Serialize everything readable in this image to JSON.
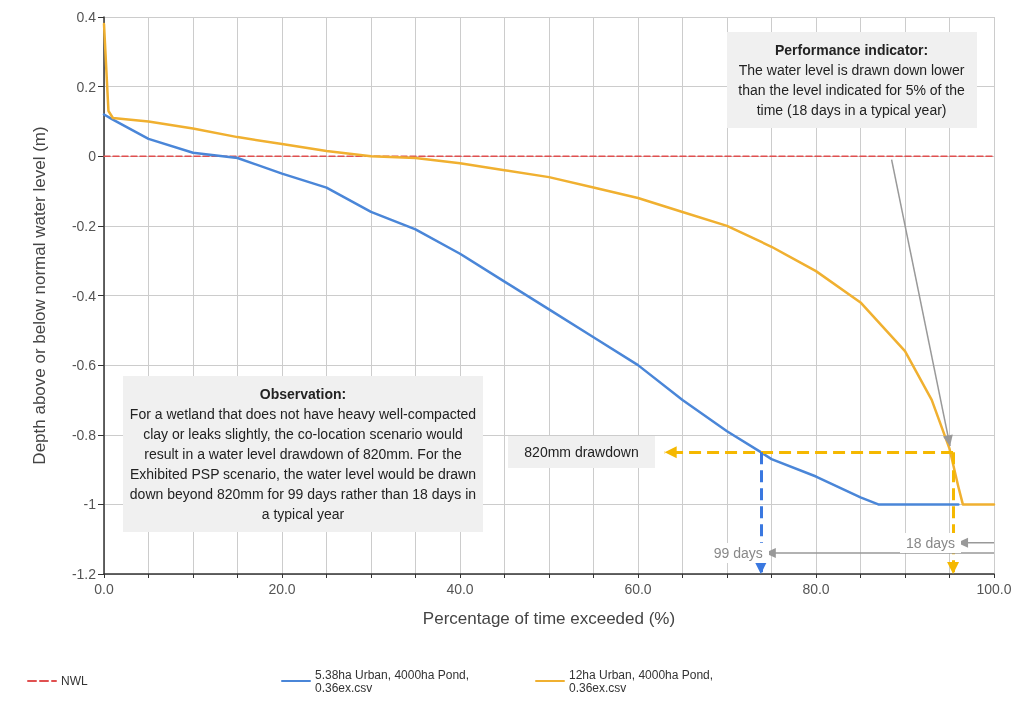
{
  "chart_data": {
    "type": "line",
    "xlabel": "Percentage of time exceeded (%)",
    "ylabel": "Depth above or below normal water level (m)",
    "xlim": [
      0,
      100
    ],
    "ylim": [
      -1.2,
      0.4
    ],
    "xticks": [
      {
        "value": 0,
        "label": "0.0"
      },
      {
        "value": 5,
        "label": null
      },
      {
        "value": 10,
        "label": null
      },
      {
        "value": 15,
        "label": null
      },
      {
        "value": 20,
        "label": "20.0"
      },
      {
        "value": 25,
        "label": null
      },
      {
        "value": 30,
        "label": null
      },
      {
        "value": 35,
        "label": null
      },
      {
        "value": 40,
        "label": "40.0"
      },
      {
        "value": 45,
        "label": null
      },
      {
        "value": 50,
        "label": null
      },
      {
        "value": 55,
        "label": null
      },
      {
        "value": 60,
        "label": "60.0"
      },
      {
        "value": 65,
        "label": null
      },
      {
        "value": 70,
        "label": null
      },
      {
        "value": 75,
        "label": null
      },
      {
        "value": 80,
        "label": "80.0"
      },
      {
        "value": 85,
        "label": null
      },
      {
        "value": 90,
        "label": null
      },
      {
        "value": 95,
        "label": null
      },
      {
        "value": 100,
        "label": "100.0"
      }
    ],
    "yticks": [
      -1.2,
      -1,
      -0.8,
      -0.6,
      -0.4,
      -0.2,
      0,
      0.2,
      0.4
    ],
    "grid": true,
    "legend": "bottom left",
    "marker": "none",
    "series": [
      {
        "name": "NWL",
        "color": "#e05050",
        "line_style": "dashed",
        "x": [
          0,
          100
        ],
        "values": [
          0,
          0
        ]
      },
      {
        "name": "5.38ha Urban, 4000ha Pond, 0.36ex.csv",
        "color": "#4a86d8",
        "line_style": "solid",
        "x": [
          0,
          1,
          5,
          10,
          15,
          20,
          25,
          30,
          35,
          40,
          45,
          50,
          55,
          60,
          65,
          70,
          73.8,
          75,
          80,
          85,
          87,
          96
        ],
        "values": [
          0.12,
          0.105,
          0.05,
          0.01,
          -0.005,
          -0.05,
          -0.09,
          -0.16,
          -0.21,
          -0.28,
          -0.36,
          -0.44,
          -0.52,
          -0.6,
          -0.7,
          -0.79,
          -0.85,
          -0.87,
          -0.92,
          -0.98,
          -1.0,
          -1.0
        ]
      },
      {
        "name": "12ha Urban, 4000ha Pond, 0.36ex.csv",
        "color": "#f0b030",
        "line_style": "solid",
        "x": [
          0,
          0.5,
          1,
          5,
          10,
          15,
          20,
          25,
          30,
          35,
          40,
          45,
          50,
          55,
          60,
          65,
          70,
          75,
          80,
          85,
          90,
          93,
          95,
          96,
          96.5,
          100
        ],
        "values": [
          0.38,
          0.13,
          0.11,
          0.1,
          0.08,
          0.055,
          0.035,
          0.015,
          0.0,
          -0.005,
          -0.02,
          -0.04,
          -0.06,
          -0.09,
          -0.12,
          -0.16,
          -0.2,
          -0.26,
          -0.33,
          -0.42,
          -0.56,
          -0.7,
          -0.84,
          -0.95,
          -1.0,
          -1.0
        ]
      }
    ],
    "ref_lines": [
      {
        "axis": "y",
        "value": -0.85,
        "color": "#f5b800",
        "line_style": "dashed"
      },
      {
        "axis": "x",
        "value": 73.8,
        "color": "#3a78e0",
        "line_style": "dashed"
      },
      {
        "axis": "x",
        "value": 95.4,
        "color": "#f5b800",
        "line_style": "dashed"
      }
    ],
    "annotations": [
      "Observation: For a wetland that does not have heavy well-compacted clay or leaks slightly, the co-location scenario would result in a water level drawdown of 820mm. For the Exhibited PSP scenario, the water level would be drawn down beyond 820mm for 99 days rather than 18 days in a typical year",
      "Performance indicator: The water level is drawn down lower than the level indicated for 5% of the time (18 days in a typical year)",
      {
        "text": "820mm drawdown",
        "x": 63,
        "y": -0.85
      },
      {
        "text": "99 days",
        "x": 73.8,
        "y": -1.14
      },
      {
        "text": "18 days",
        "x": 95.4,
        "y": -1.11
      }
    ]
  }
}
